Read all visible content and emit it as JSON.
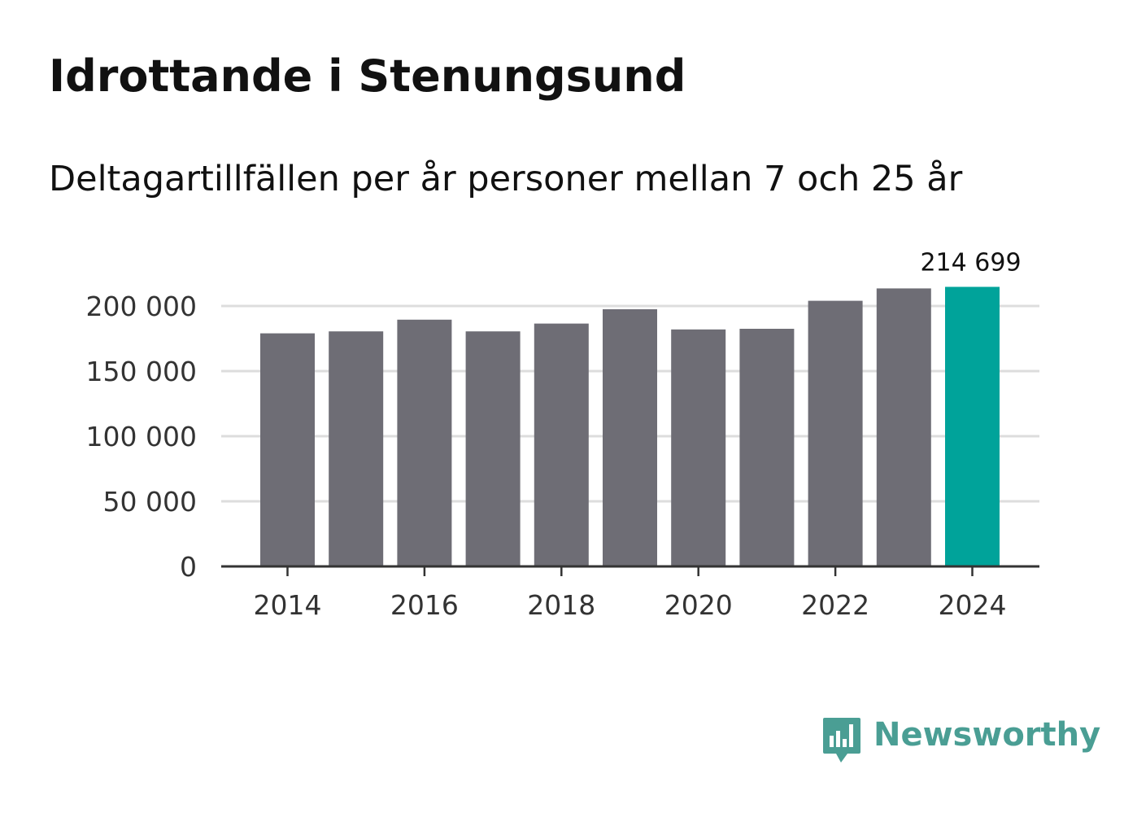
{
  "title": "Idrottande i Stenungsund",
  "subtitle": "Deltagartillfällen per år personer mellan 7 och 25 år",
  "brand": {
    "name": "Newsworthy",
    "color": "#4a9e94",
    "icon": "bar-chart-speech-bubble-icon"
  },
  "colors": {
    "bar": "#6e6d75",
    "highlight": "#00a39a",
    "grid": "#dddddd",
    "axis": "#333333"
  },
  "chart_data": {
    "type": "bar",
    "title": "Idrottande i Stenungsund",
    "subtitle": "Deltagartillfällen per år personer mellan 7 och 25 år",
    "xlabel": "",
    "ylabel": "",
    "categories": [
      2014,
      2015,
      2016,
      2017,
      2018,
      2019,
      2020,
      2021,
      2022,
      2023,
      2024
    ],
    "values": [
      179000,
      180500,
      189500,
      180500,
      186500,
      197500,
      182000,
      182500,
      204000,
      213500,
      214699
    ],
    "highlight_index": 10,
    "highlight_label": "214 699",
    "ylim": [
      0,
      215000
    ],
    "yticks": [
      0,
      50000,
      100000,
      150000,
      200000
    ],
    "ytick_labels": [
      "0",
      "50 000",
      "100 000",
      "150 000",
      "200 000"
    ],
    "xticks": [
      2014,
      2016,
      2018,
      2020,
      2022,
      2024
    ],
    "xtick_labels": [
      "2014",
      "2016",
      "2018",
      "2020",
      "2022",
      "2024"
    ],
    "grid": true,
    "legend": "none"
  }
}
